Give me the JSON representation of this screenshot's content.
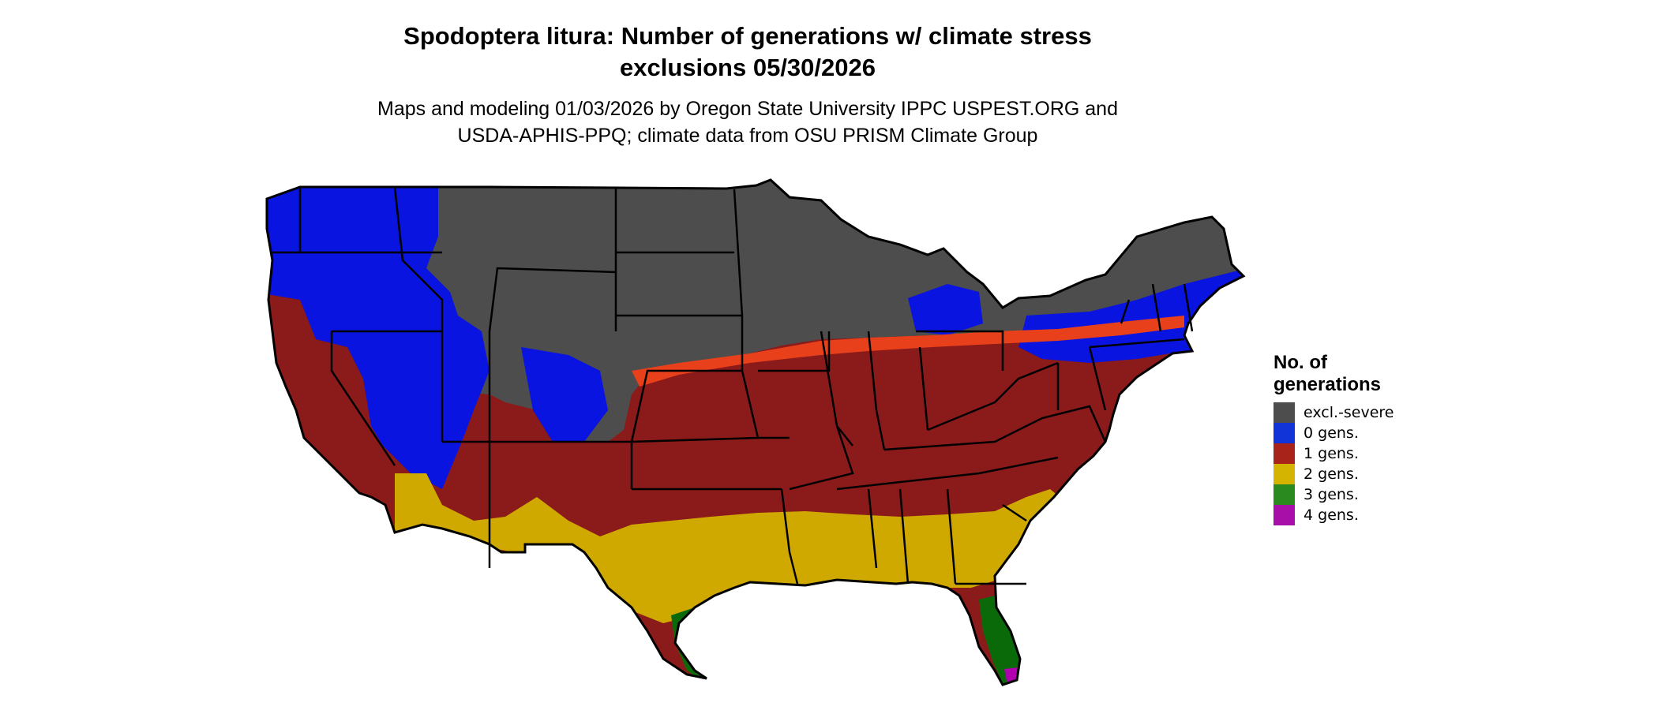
{
  "header": {
    "title_line1": "Spodoptera litura: Number of generations w/ climate stress",
    "title_line2": "exclusions 05/30/2026",
    "subtitle_line1": "Maps and modeling 01/03/2026 by Oregon State University IPPC USPEST.ORG and",
    "subtitle_line2": "USDA-APHIS-PPQ; climate data from OSU PRISM Climate Group"
  },
  "legend": {
    "title_line1": "No. of",
    "title_line2": "generations",
    "items": [
      {
        "label": "excl.-severe",
        "color": "#4d4d4d"
      },
      {
        "label": "0 gens.",
        "color": "#1034d8"
      },
      {
        "label": "1 gens.",
        "color": "#a8231a"
      },
      {
        "label": "2 gens.",
        "color": "#d4b400"
      },
      {
        "label": "3 gens.",
        "color": "#2a8a1f"
      },
      {
        "label": "4 gens.",
        "color": "#a80fa8"
      }
    ]
  },
  "map": {
    "colors": {
      "excluded": "#4d4d4d",
      "gen0": "#0a14e0",
      "gen1": "#8b1a1a",
      "gen1_light": "#e8401a",
      "gen2": "#cfa800",
      "gen3": "#0a6a0a",
      "gen4": "#b000b0",
      "border": "#000000"
    }
  }
}
